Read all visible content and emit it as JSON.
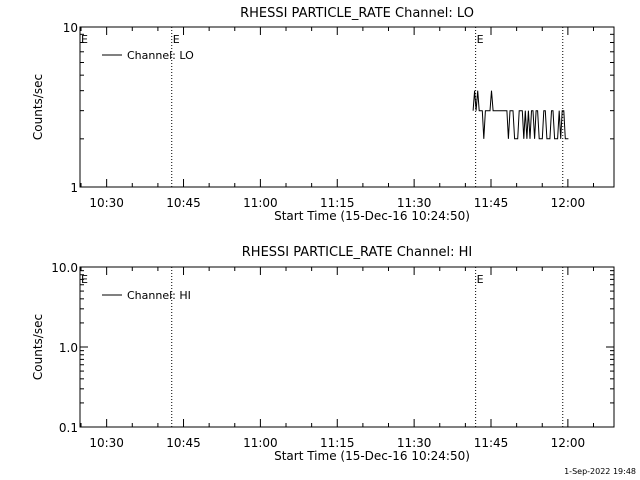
{
  "footer": {
    "timestamp": "1-Sep-2022 19:48"
  },
  "chart_data": [
    {
      "type": "line",
      "title": "RHESSI PARTICLE_RATE Channel: LO",
      "xlabel": "Start Time (15-Dec-16 10:24:50)",
      "ylabel": "Counts/sec",
      "y_scale": "log",
      "ylim": [
        1,
        10
      ],
      "y_ticks": [
        {
          "value": 1,
          "label": "1"
        },
        {
          "value": 10,
          "label": "10"
        }
      ],
      "x_ticks": [
        {
          "minutes": 30,
          "label": "10:30"
        },
        {
          "minutes": 45,
          "label": "10:45"
        },
        {
          "minutes": 60,
          "label": "11:00"
        },
        {
          "minutes": 75,
          "label": "11:15"
        },
        {
          "minutes": 90,
          "label": "11:30"
        },
        {
          "minutes": 105,
          "label": "11:45"
        },
        {
          "minutes": 120,
          "label": "12:00"
        }
      ],
      "xlim_minutes_from_10h": [
        24.8,
        129.0
      ],
      "event_lines": [
        {
          "minutes": 42.7,
          "label": "E"
        },
        {
          "minutes": 102.0,
          "label": "E"
        },
        {
          "minutes": 119.0,
          "label": ""
        }
      ],
      "edge_marker": "E",
      "legend": {
        "position": "top-left",
        "label": "Channel: LO"
      },
      "series": [
        {
          "name": "Channel: LO",
          "x_minutes_from_10h": [
            101.5,
            101.8,
            102.1,
            102.4,
            102.7,
            103.0,
            103.3,
            103.6,
            103.9,
            104.2,
            104.5,
            104.8,
            105.1,
            105.4,
            105.7,
            106.0,
            106.3,
            106.6,
            106.9,
            107.2,
            107.5,
            107.8,
            108.1,
            108.4,
            108.7,
            109.0,
            109.3,
            109.6,
            109.9,
            110.2,
            110.5,
            110.8,
            111.1,
            111.4,
            111.7,
            112.0,
            112.3,
            112.6,
            112.9,
            113.2,
            113.5,
            113.8,
            114.1,
            114.4,
            114.7,
            115.0,
            115.3,
            115.6,
            115.9,
            116.2,
            116.5,
            116.8,
            117.1,
            117.4,
            117.7,
            118.0,
            118.3,
            118.6,
            118.9,
            119.2,
            119.5,
            119.8,
            120.1
          ],
          "y": [
            3,
            4,
            3,
            4,
            3,
            3,
            3,
            2,
            3,
            3,
            3,
            3,
            4,
            3,
            3,
            3,
            3,
            3,
            3,
            3,
            3,
            3,
            3,
            2,
            3,
            3,
            3,
            2,
            2,
            2,
            3,
            3,
            3,
            2,
            3,
            2,
            3,
            2,
            3,
            3,
            2,
            3,
            3,
            2,
            2,
            2,
            3,
            3,
            2,
            2,
            2,
            3,
            3,
            2,
            2,
            2,
            3,
            2,
            3,
            3,
            2,
            2,
            2
          ]
        }
      ]
    },
    {
      "type": "line",
      "title": "RHESSI PARTICLE_RATE Channel: HI",
      "xlabel": "Start Time (15-Dec-16 10:24:50)",
      "ylabel": "Counts/sec",
      "y_scale": "log",
      "ylim": [
        0.1,
        10
      ],
      "y_ticks": [
        {
          "value": 0.1,
          "label": "0.1"
        },
        {
          "value": 1,
          "label": "1.0"
        },
        {
          "value": 10,
          "label": "10.0"
        }
      ],
      "x_ticks": [
        {
          "minutes": 30,
          "label": "10:30"
        },
        {
          "minutes": 45,
          "label": "10:45"
        },
        {
          "minutes": 60,
          "label": "11:00"
        },
        {
          "minutes": 75,
          "label": "11:15"
        },
        {
          "minutes": 90,
          "label": "11:30"
        },
        {
          "minutes": 105,
          "label": "11:45"
        },
        {
          "minutes": 120,
          "label": "12:00"
        }
      ],
      "xlim_minutes_from_10h": [
        24.8,
        129.0
      ],
      "event_lines": [
        {
          "minutes": 42.7,
          "label": ""
        },
        {
          "minutes": 102.0,
          "label": "E"
        },
        {
          "minutes": 119.0,
          "label": ""
        }
      ],
      "edge_marker": "E",
      "legend": {
        "position": "top-left",
        "label": "Channel: HI"
      },
      "series": [
        {
          "name": "Channel: HI",
          "x_minutes_from_10h": [],
          "y": []
        }
      ]
    }
  ]
}
